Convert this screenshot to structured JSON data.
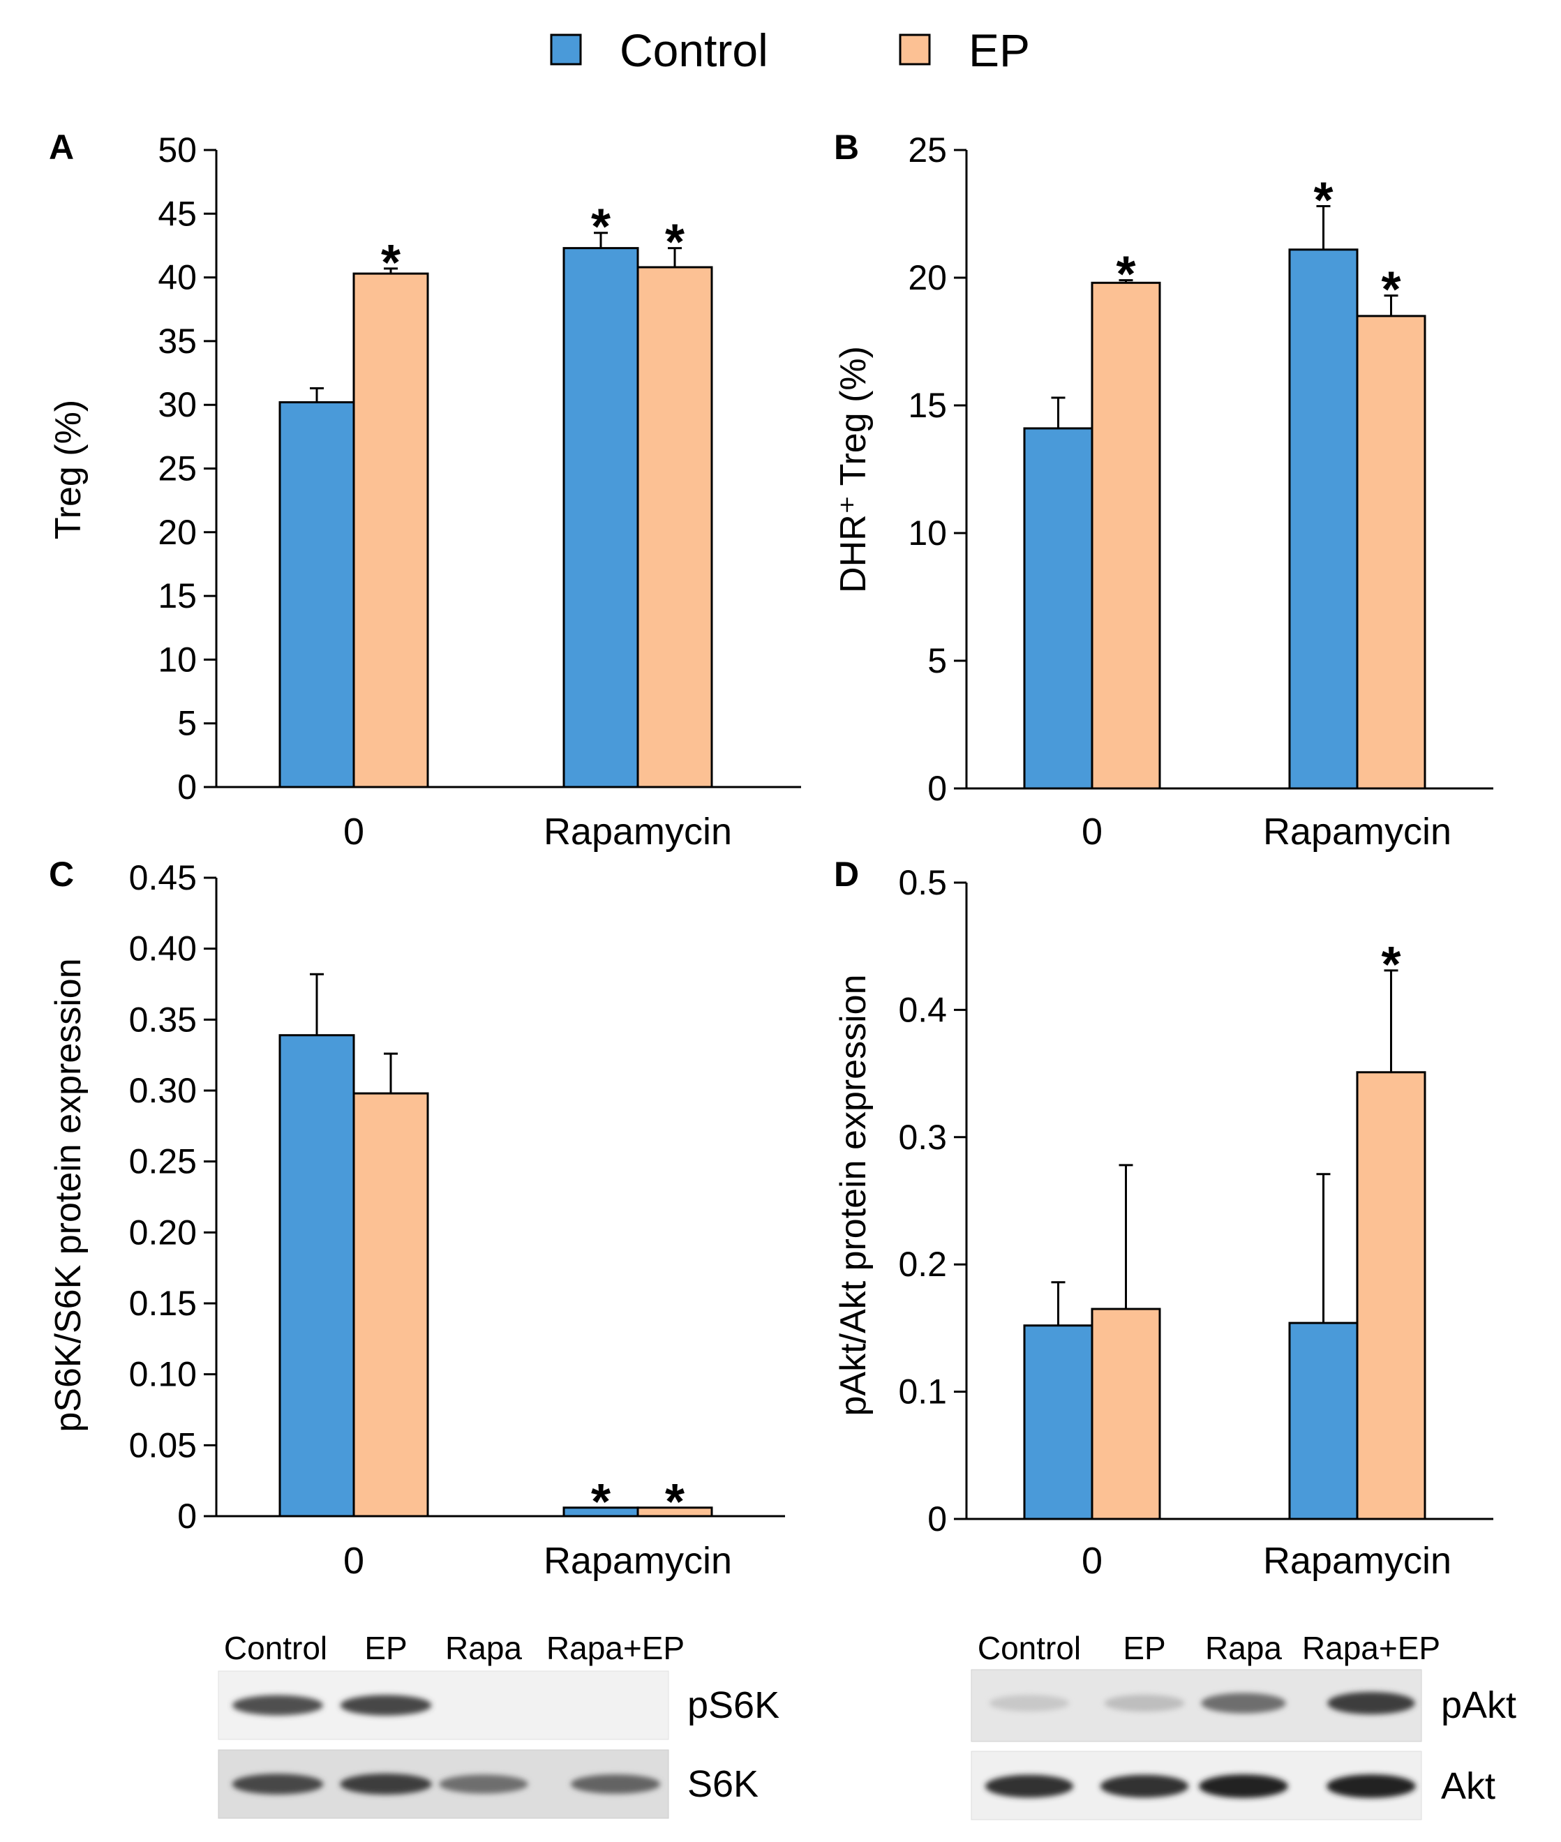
{
  "legend": [
    {
      "name": "Control",
      "color": "#4a9ad9"
    },
    {
      "name": "EP",
      "color": "#fcc194"
    }
  ],
  "chart_data": [
    {
      "panel": "A",
      "type": "bar",
      "ylabel": "Treg (%)",
      "ylim": [
        0,
        50
      ],
      "yticks": [
        "0",
        "5",
        "10",
        "15",
        "20",
        "25",
        "30",
        "35",
        "40",
        "45",
        "50"
      ],
      "categories": [
        "0",
        "Rapamycin"
      ],
      "series": [
        {
          "name": "Control",
          "values": [
            30.2,
            42.3
          ],
          "errors": [
            1.1,
            1.2
          ]
        },
        {
          "name": "EP",
          "values": [
            40.3,
            40.8
          ],
          "errors": [
            0.4,
            1.5
          ]
        }
      ],
      "significance": [
        [
          false,
          true
        ],
        [
          true,
          true
        ]
      ]
    },
    {
      "panel": "B",
      "type": "bar",
      "ylabel": "DHR⁺ Treg (%)",
      "ylim": [
        0,
        25
      ],
      "yticks": [
        "0",
        "5",
        "10",
        "15",
        "20",
        "25"
      ],
      "categories": [
        "0",
        "Rapamycin"
      ],
      "series": [
        {
          "name": "Control",
          "values": [
            14.1,
            21.1
          ],
          "errors": [
            1.2,
            1.7
          ]
        },
        {
          "name": "EP",
          "values": [
            19.8,
            18.5
          ],
          "errors": [
            0.1,
            0.8
          ]
        }
      ],
      "significance": [
        [
          false,
          true
        ],
        [
          true,
          true
        ]
      ]
    },
    {
      "panel": "C",
      "type": "bar",
      "ylabel": "pS6K/S6K protein expression",
      "ylim": [
        0,
        0.45
      ],
      "yticks": [
        "0",
        "0.05",
        "0.10",
        "0.15",
        "0.20",
        "0.25",
        "0.30",
        "0.35",
        "0.40",
        "0.45"
      ],
      "categories": [
        "0",
        "Rapamycin"
      ],
      "series": [
        {
          "name": "Control",
          "values": [
            0.339,
            0.006
          ],
          "errors": [
            0.043,
            0
          ]
        },
        {
          "name": "EP",
          "values": [
            0.298,
            0.006
          ],
          "errors": [
            0.028,
            0
          ]
        }
      ],
      "significance": [
        [
          false,
          true
        ],
        [
          false,
          true
        ]
      ]
    },
    {
      "panel": "D",
      "type": "bar",
      "ylabel": "pAkt/Akt protein expression",
      "ylim": [
        0,
        0.5
      ],
      "yticks": [
        "0",
        "0.1",
        "0.2",
        "0.3",
        "0.4",
        "0.5"
      ],
      "categories": [
        "0",
        "Rapamycin"
      ],
      "series": [
        {
          "name": "Control",
          "values": [
            0.152,
            0.154
          ],
          "errors": [
            0.034,
            0.117
          ]
        },
        {
          "name": "EP",
          "values": [
            0.165,
            0.351
          ],
          "errors": [
            0.113,
            0.08
          ]
        }
      ],
      "significance": [
        [
          false,
          false
        ],
        [
          false,
          true
        ]
      ]
    }
  ],
  "blots": [
    {
      "lanes": [
        "Control",
        "EP",
        "Rapa",
        "Rapa+EP"
      ],
      "rows": [
        {
          "label": "pS6K",
          "intensities": [
            0.75,
            0.8,
            0.0,
            0.0
          ]
        },
        {
          "label": "S6K",
          "intensities": [
            0.8,
            0.85,
            0.6,
            0.65
          ]
        }
      ]
    },
    {
      "lanes": [
        "Control",
        "EP",
        "Rapa",
        "Rapa+EP"
      ],
      "rows": [
        {
          "label": "pAkt",
          "intensities": [
            0.15,
            0.2,
            0.6,
            0.85
          ]
        },
        {
          "label": "Akt",
          "intensities": [
            0.9,
            0.9,
            0.98,
            0.98
          ]
        }
      ]
    }
  ],
  "significance_marker": "*"
}
